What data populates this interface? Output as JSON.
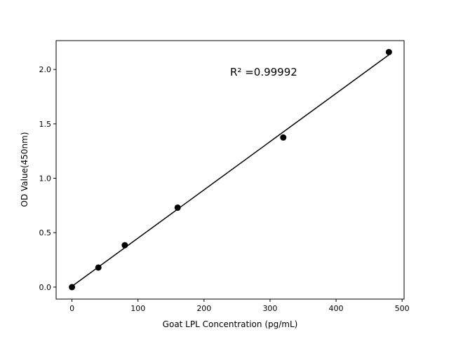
{
  "chart_data": {
    "type": "scatter",
    "title": "",
    "xlabel": "Goat LPL Concentration (pg/mL)",
    "ylabel": "OD Value(450nm)",
    "xlim": [
      -24,
      503
    ],
    "ylim": [
      -0.11,
      2.265
    ],
    "xticks": [
      0,
      100,
      200,
      300,
      400,
      500
    ],
    "yticks": [
      0.0,
      0.5,
      1.0,
      1.5,
      2.0
    ],
    "xtick_labels": [
      "0",
      "100",
      "200",
      "300",
      "400",
      "500"
    ],
    "ytick_labels": [
      "0.0",
      "0.5",
      "1.0",
      "1.5",
      "2.0"
    ],
    "grid": false,
    "points": {
      "x": [
        0,
        40,
        80,
        160,
        320,
        480
      ],
      "y": [
        0.0,
        0.18,
        0.385,
        0.73,
        1.375,
        2.16
      ]
    },
    "fit_line": {
      "type": "linear",
      "x_range": [
        0,
        480
      ]
    },
    "annotation": "R² =0.99992",
    "colors": {
      "points": "#000000",
      "line": "#000000"
    }
  }
}
